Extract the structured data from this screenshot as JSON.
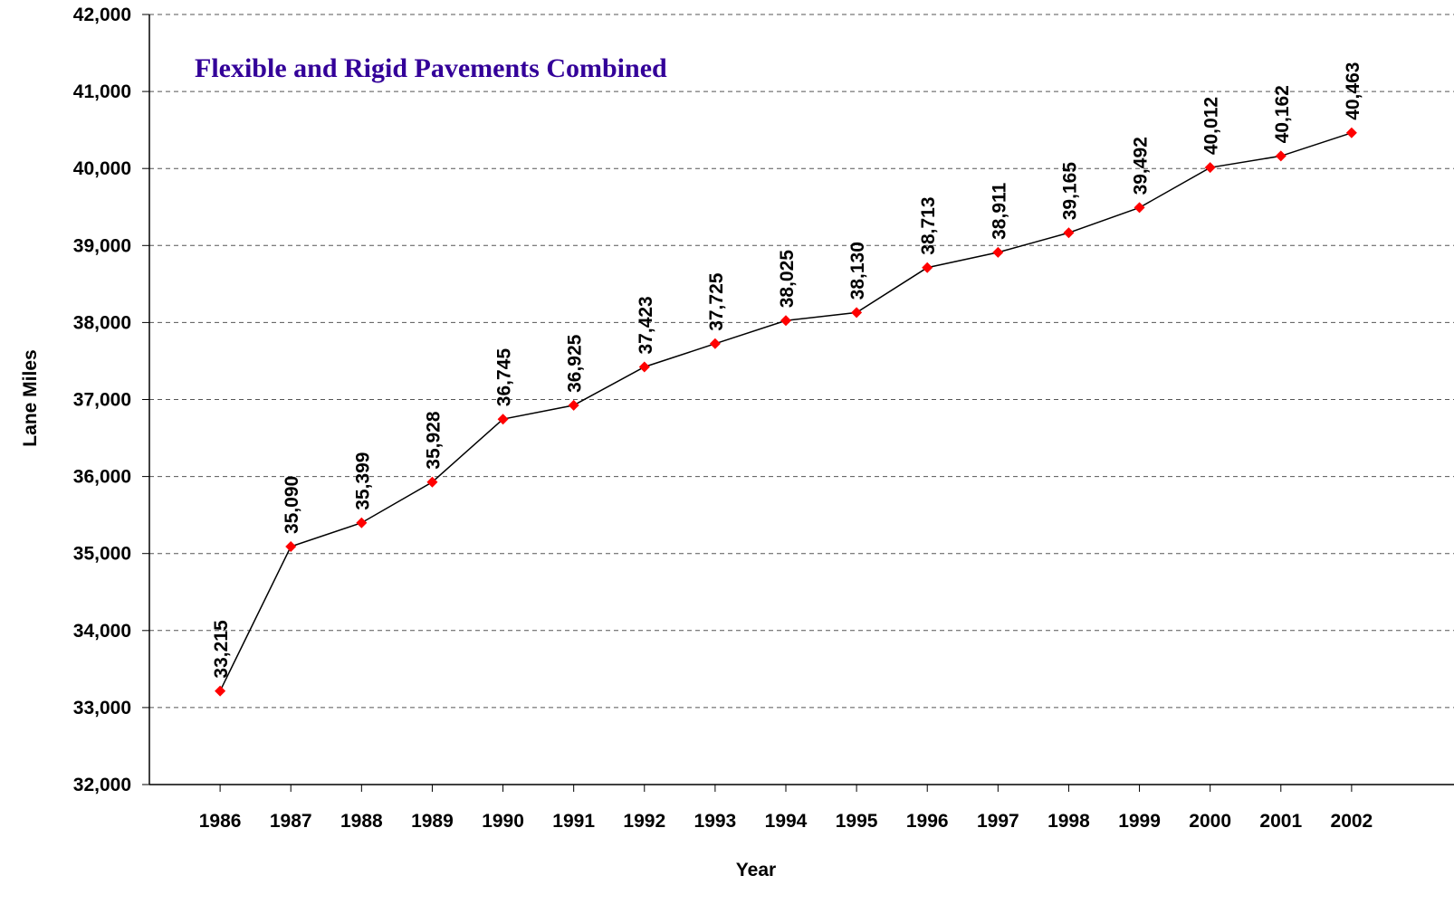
{
  "chart_data": {
    "type": "line",
    "title": "Flexible and Rigid Pavements Combined",
    "x_label": "Year",
    "y_label": "Lane Miles",
    "categories": [
      "1986",
      "1987",
      "1988",
      "1989",
      "1990",
      "1991",
      "1992",
      "1993",
      "1994",
      "1995",
      "1996",
      "1997",
      "1998",
      "1999",
      "2000",
      "2001",
      "2002"
    ],
    "series": [
      {
        "name": "Lane Miles",
        "color": "#ff0000",
        "line_color": "#000000",
        "values": [
          33215,
          35090,
          35399,
          35928,
          36745,
          36925,
          37423,
          37725,
          38025,
          38130,
          38713,
          38911,
          39165,
          39492,
          40012,
          40162,
          40463
        ],
        "value_labels": [
          "33,215",
          "35,090",
          "35,399",
          "35,928",
          "36,745",
          "36,925",
          "37,423",
          "37,725",
          "38,025",
          "38,130",
          "38,713",
          "38,911",
          "39,165",
          "39,492",
          "40,012",
          "40,162",
          "40,463"
        ]
      }
    ],
    "ylim": [
      32000,
      42000
    ],
    "yticks": [
      {
        "value": 32000,
        "label": "32,000"
      },
      {
        "value": 33000,
        "label": "33,000"
      },
      {
        "value": 34000,
        "label": "34,000"
      },
      {
        "value": 35000,
        "label": "35,000"
      },
      {
        "value": 36000,
        "label": "36,000"
      },
      {
        "value": 37000,
        "label": "37,000"
      },
      {
        "value": 38000,
        "label": "38,000"
      },
      {
        "value": 39000,
        "label": "39,000"
      },
      {
        "value": 40000,
        "label": "40,000"
      },
      {
        "value": 41000,
        "label": "41,000"
      },
      {
        "value": 42000,
        "label": "42,000"
      }
    ],
    "grid": true
  }
}
